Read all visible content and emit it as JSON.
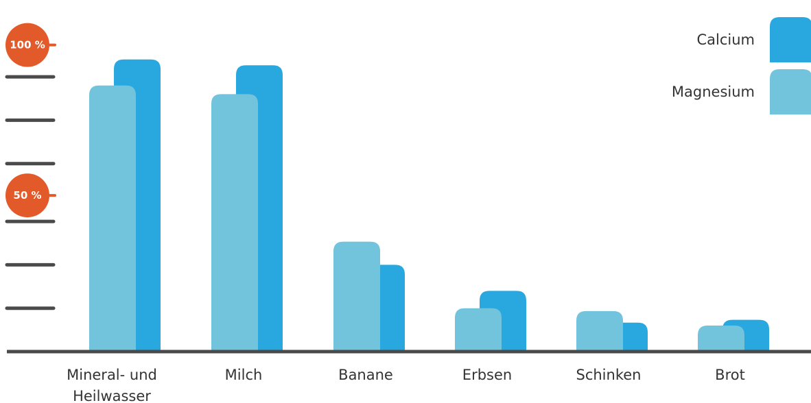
{
  "chart_data": {
    "type": "bar",
    "categories": [
      "Mineral- und Heilwasser",
      "Milch",
      "Banane",
      "Erbsen",
      "Schinken",
      "Brot"
    ],
    "category_lines": [
      [
        "Mineral- und",
        "Heilwasser"
      ],
      [
        "Milch"
      ],
      [
        "Banane"
      ],
      [
        "Erbsen"
      ],
      [
        "Schinken"
      ],
      [
        "Brot"
      ]
    ],
    "series": [
      {
        "name": "Calcium",
        "color": "#29a8e0",
        "values": [
          101,
          99,
          30,
          21,
          10,
          11
        ]
      },
      {
        "name": "Magnesium",
        "color": "#72c3dc",
        "values": [
          92,
          89,
          38,
          15,
          14,
          9
        ]
      }
    ],
    "ylim": [
      0,
      110
    ],
    "ytick_values": [
      15,
      30,
      45,
      65,
      80,
      95
    ],
    "markers": [
      {
        "value": 106,
        "label": "100 %"
      },
      {
        "value": 54,
        "label": "50 %"
      }
    ],
    "legend_position": "top-right",
    "grid": false,
    "axis_color": "#4a4a4a",
    "marker_color": "#e35a2a"
  }
}
